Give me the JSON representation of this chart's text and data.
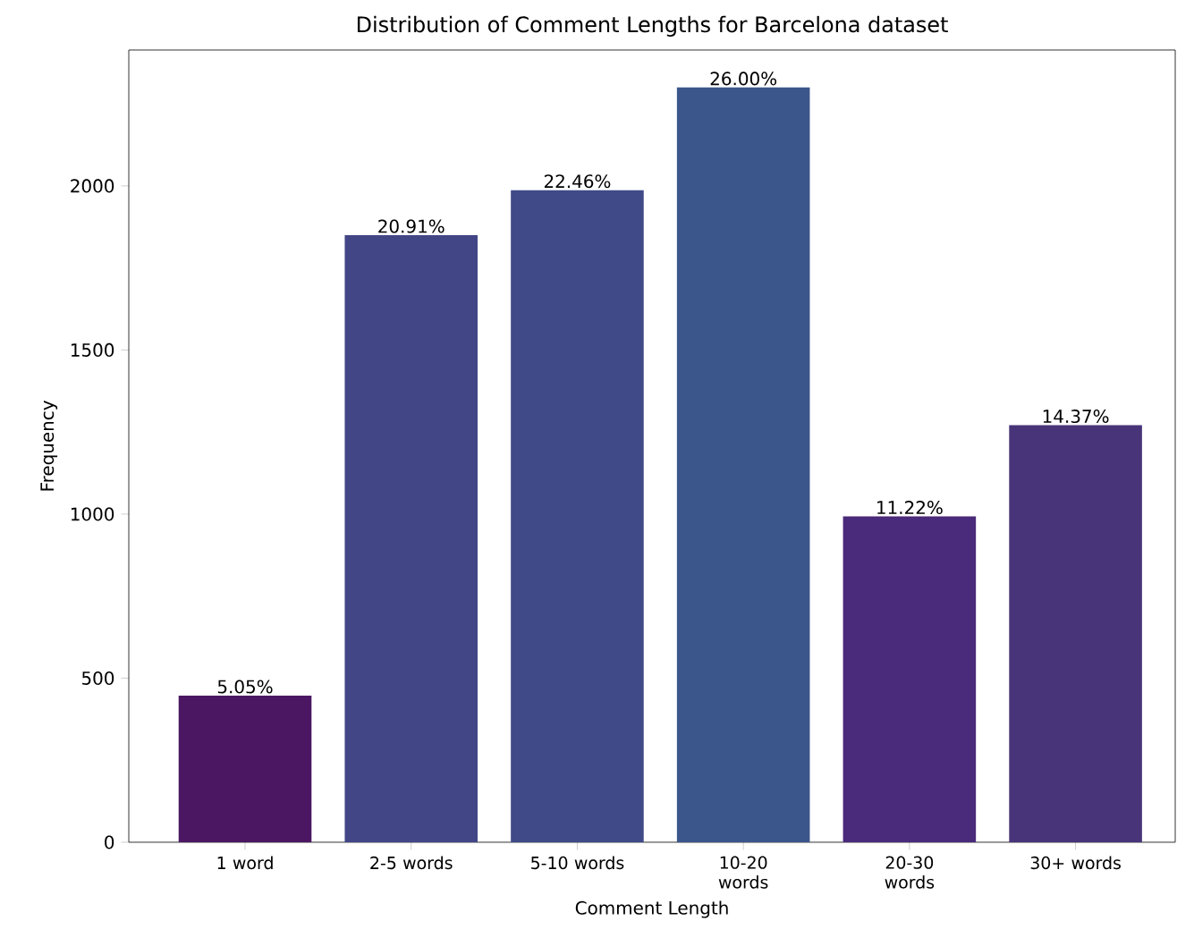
{
  "chart_data": {
    "type": "bar",
    "title": "Distribution of Comment Lengths for Barcelona dataset",
    "xlabel": "Comment Length",
    "ylabel": "Frequency",
    "categories": [
      "1 word",
      "2-5 words",
      "5-10 words",
      "10-20 words",
      "20-30 words",
      "30+ words"
    ],
    "values": [
      447,
      1850,
      1987,
      2300,
      993,
      1271
    ],
    "annotations": [
      {
        "text": "5.05%",
        "x": "1 word",
        "y": 447
      },
      {
        "text": "20.91%",
        "x": "2-5 words",
        "y": 1850
      },
      {
        "text": "22.46%",
        "x": "5-10 words",
        "y": 1987
      },
      {
        "text": "26.00%",
        "x": "10-20 words",
        "y": 2300
      },
      {
        "text": "11.22%",
        "x": "20-30 words",
        "y": 993
      },
      {
        "text": "14.37%",
        "x": "30+ words",
        "y": 1271
      }
    ],
    "colors": [
      "#4b1763",
      "#424686",
      "#404a88",
      "#3b568b",
      "#4a2a7a",
      "#483479"
    ],
    "ylim": [
      0,
      2414
    ],
    "yticks": [
      0,
      500,
      1000,
      1500,
      2000
    ]
  }
}
